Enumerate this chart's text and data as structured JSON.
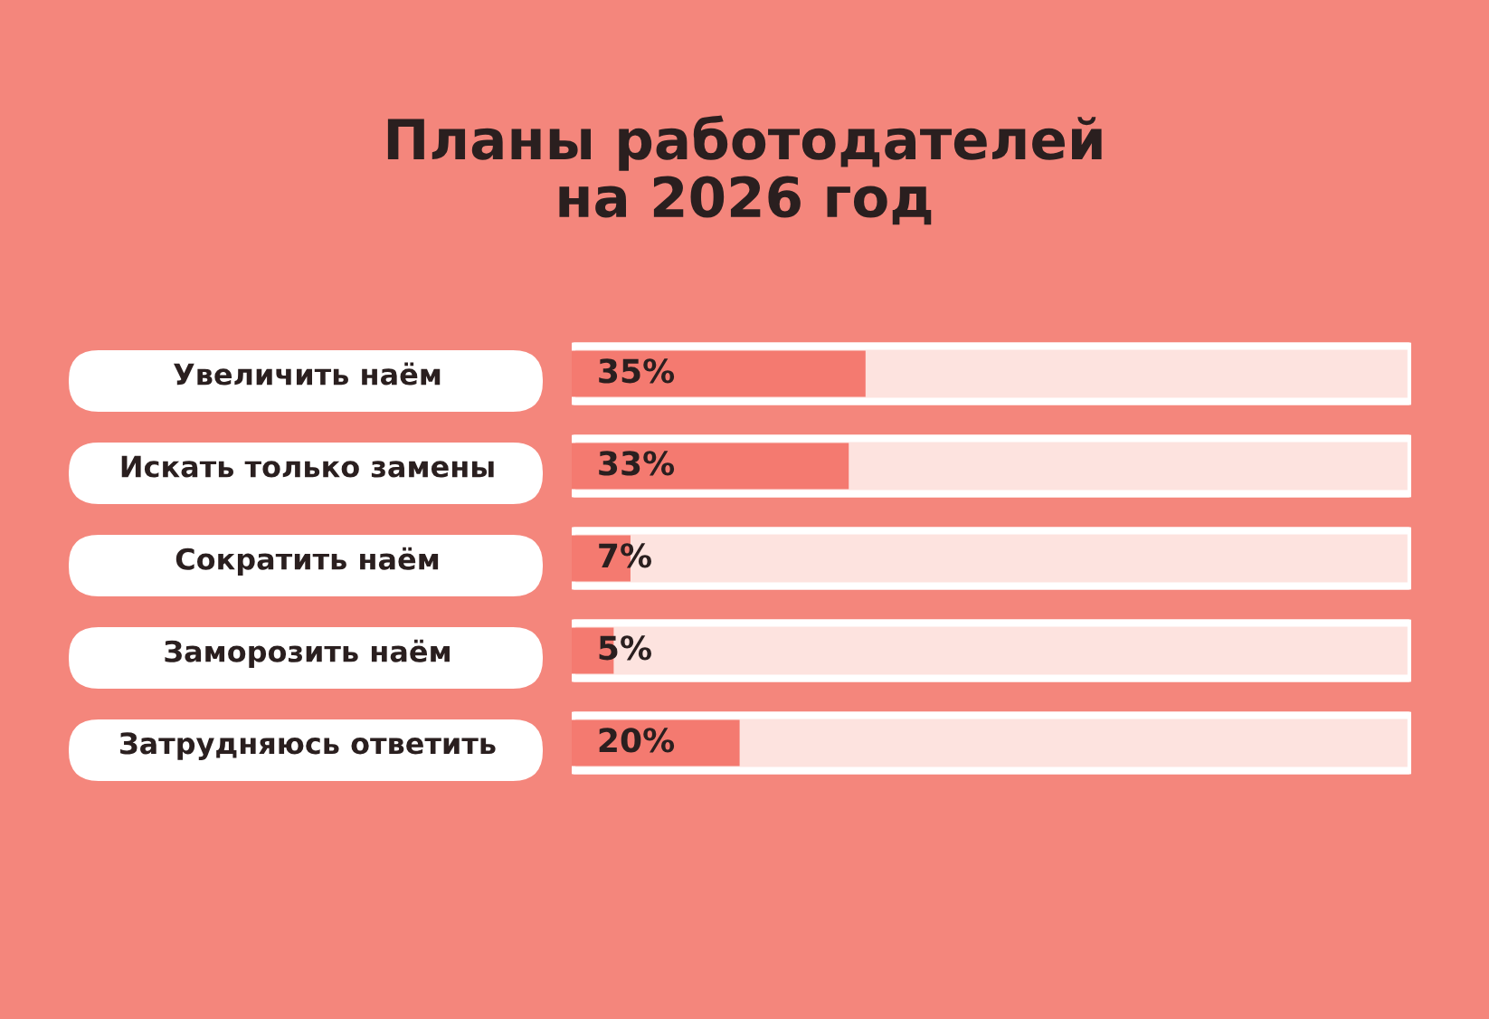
{
  "chart_data": {
    "type": "bar",
    "orientation": "horizontal",
    "title": "Планы работодателей\nна 2026 год",
    "categories": [
      "Увеличить наём",
      "Искать только замены",
      "Сократить наём",
      "Заморозить наём",
      "Затрудняюсь ответить"
    ],
    "values": [
      35,
      33,
      7,
      5,
      20
    ],
    "value_labels": [
      "35%",
      "33%",
      "7%",
      "5%",
      "20%"
    ],
    "color": "#f47a70",
    "xlim": [
      0,
      100
    ],
    "tick_labels": "y",
    "grid": false
  }
}
